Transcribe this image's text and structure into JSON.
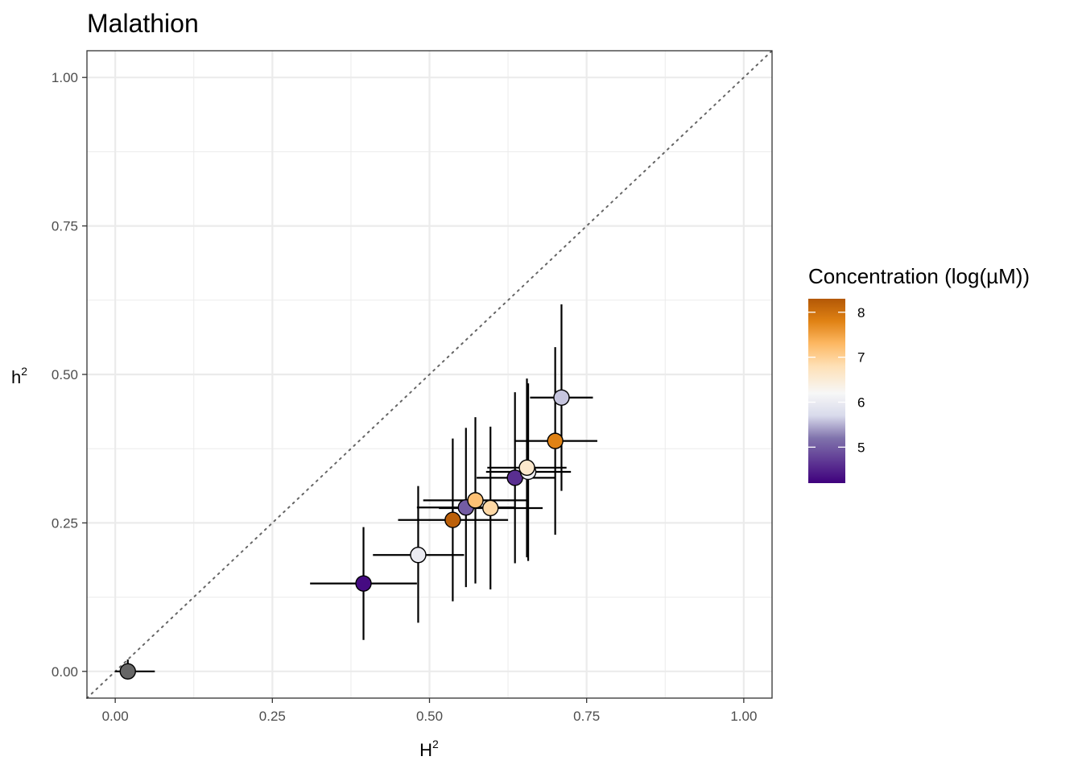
{
  "chart_data": {
    "type": "scatter",
    "title": "Malathion",
    "xlabel": {
      "base": "H",
      "sup": "2"
    },
    "ylabel": {
      "base": "h",
      "sup": "2"
    },
    "xlim": [
      -0.045,
      1.045
    ],
    "ylim": [
      -0.045,
      1.045
    ],
    "x_ticks": [
      {
        "value": 0.0,
        "label": "0.00"
      },
      {
        "value": 0.25,
        "label": "0.25"
      },
      {
        "value": 0.5,
        "label": "0.50"
      },
      {
        "value": 0.75,
        "label": "0.75"
      },
      {
        "value": 1.0,
        "label": "1.00"
      }
    ],
    "y_ticks": [
      {
        "value": 0.0,
        "label": "0.00"
      },
      {
        "value": 0.25,
        "label": "0.25"
      },
      {
        "value": 0.5,
        "label": "0.50"
      },
      {
        "value": 0.75,
        "label": "0.75"
      },
      {
        "value": 1.0,
        "label": "1.00"
      }
    ],
    "grid": true,
    "reference_line": {
      "type": "identity",
      "style": "dotted"
    },
    "points": [
      {
        "x": 0.02,
        "y": 0.0,
        "xmin": 0.0,
        "xmax": 0.063,
        "ymin": -0.005,
        "ymax": 0.02,
        "concentration": null
      },
      {
        "x": 0.395,
        "y": 0.148,
        "xmin": 0.31,
        "xmax": 0.48,
        "ymin": 0.053,
        "ymax": 0.243,
        "concentration": 4.3
      },
      {
        "x": 0.482,
        "y": 0.196,
        "xmin": 0.41,
        "xmax": 0.555,
        "ymin": 0.082,
        "ymax": 0.312,
        "concentration": 6.0
      },
      {
        "x": 0.537,
        "y": 0.255,
        "xmin": 0.45,
        "xmax": 0.625,
        "ymin": 0.118,
        "ymax": 0.392,
        "concentration": 8.2
      },
      {
        "x": 0.558,
        "y": 0.276,
        "xmin": 0.48,
        "xmax": 0.635,
        "ymin": 0.142,
        "ymax": 0.41,
        "concentration": 5.0
      },
      {
        "x": 0.573,
        "y": 0.288,
        "xmin": 0.49,
        "xmax": 0.655,
        "ymin": 0.148,
        "ymax": 0.428,
        "concentration": 7.2
      },
      {
        "x": 0.597,
        "y": 0.275,
        "xmin": 0.515,
        "xmax": 0.68,
        "ymin": 0.138,
        "ymax": 0.412,
        "concentration": 6.9
      },
      {
        "x": 0.636,
        "y": 0.326,
        "xmin": 0.575,
        "xmax": 0.7,
        "ymin": 0.182,
        "ymax": 0.47,
        "concentration": 4.6
      },
      {
        "x": 0.657,
        "y": 0.336,
        "xmin": 0.59,
        "xmax": 0.725,
        "ymin": 0.186,
        "ymax": 0.485,
        "concentration": 6.1
      },
      {
        "x": 0.655,
        "y": 0.343,
        "xmin": 0.592,
        "xmax": 0.718,
        "ymin": 0.192,
        "ymax": 0.493,
        "concentration": 6.6
      },
      {
        "x": 0.7,
        "y": 0.388,
        "xmin": 0.635,
        "xmax": 0.767,
        "ymin": 0.23,
        "ymax": 0.546,
        "concentration": 7.8
      },
      {
        "x": 0.71,
        "y": 0.461,
        "xmin": 0.66,
        "xmax": 0.76,
        "ymin": 0.304,
        "ymax": 0.618,
        "concentration": 5.6
      }
    ],
    "na_color": "#666666",
    "legend": {
      "title": "Concentration (log(µM))",
      "position": "right",
      "range": [
        4.2,
        8.3
      ],
      "ticks": [
        {
          "value": 5,
          "label": "5"
        },
        {
          "value": 6,
          "label": "6"
        },
        {
          "value": 7,
          "label": "7"
        },
        {
          "value": 8,
          "label": "8"
        }
      ],
      "colormap": [
        {
          "value": 4.2,
          "color": "#3f007d"
        },
        {
          "value": 5.2,
          "color": "#8073ac"
        },
        {
          "value": 5.7,
          "color": "#d8daeb"
        },
        {
          "value": 6.2,
          "color": "#f7f7f7"
        },
        {
          "value": 6.8,
          "color": "#fee0b6"
        },
        {
          "value": 7.3,
          "color": "#fdb863"
        },
        {
          "value": 7.8,
          "color": "#e08214"
        },
        {
          "value": 8.3,
          "color": "#b35806"
        }
      ]
    }
  }
}
